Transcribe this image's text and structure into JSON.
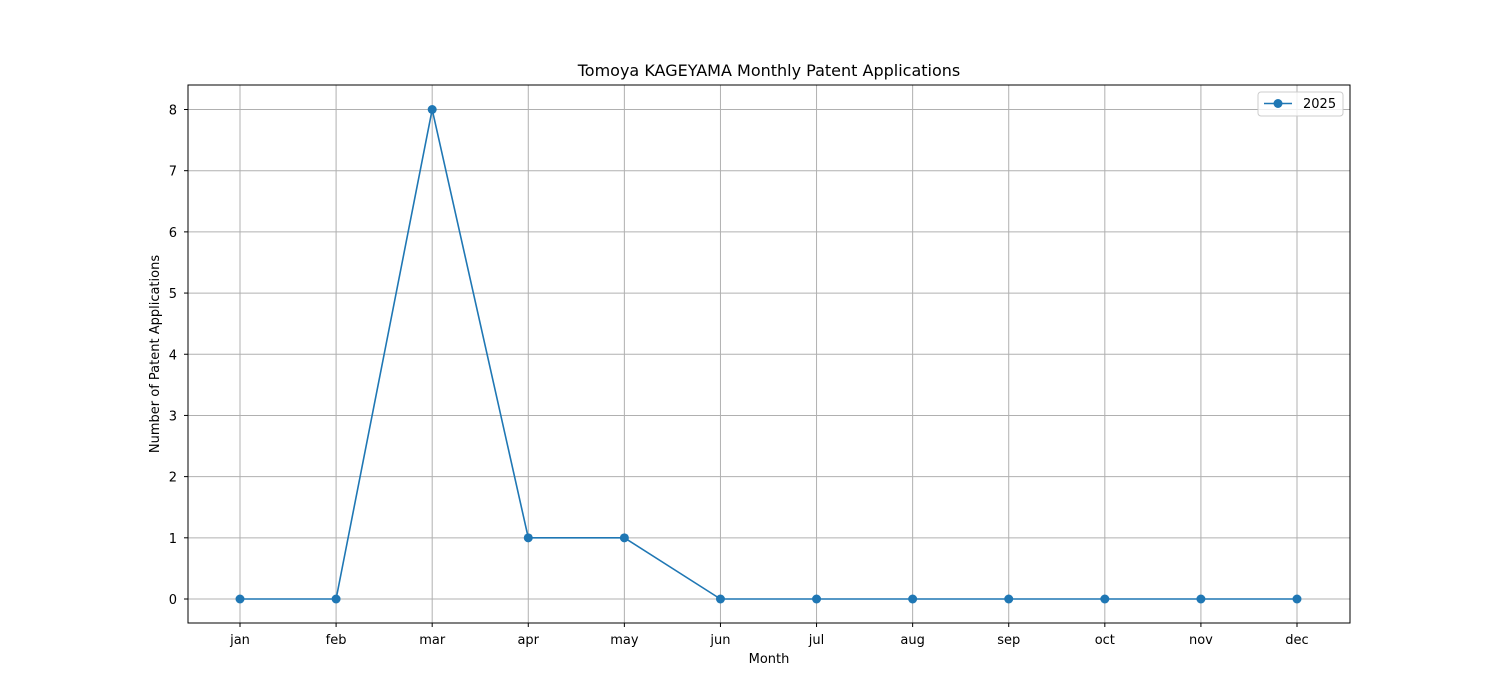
{
  "chart_data": {
    "type": "line",
    "title": "Tomoya KAGEYAMA Monthly Patent Applications",
    "xlabel": "Month",
    "ylabel": "Number of Patent Applications",
    "categories": [
      "jan",
      "feb",
      "mar",
      "apr",
      "may",
      "jun",
      "jul",
      "aug",
      "sep",
      "oct",
      "nov",
      "dec"
    ],
    "series": [
      {
        "name": "2025",
        "values": [
          0,
          0,
          8,
          1,
          1,
          0,
          0,
          0,
          0,
          0,
          0,
          0
        ],
        "color": "#1f77b4",
        "marker": "circle"
      }
    ],
    "ylim": [
      -0.4,
      8.4
    ],
    "yticks": [
      "0",
      "1",
      "2",
      "3",
      "4",
      "5",
      "6",
      "7",
      "8"
    ],
    "grid": true,
    "legend": "top-right"
  }
}
